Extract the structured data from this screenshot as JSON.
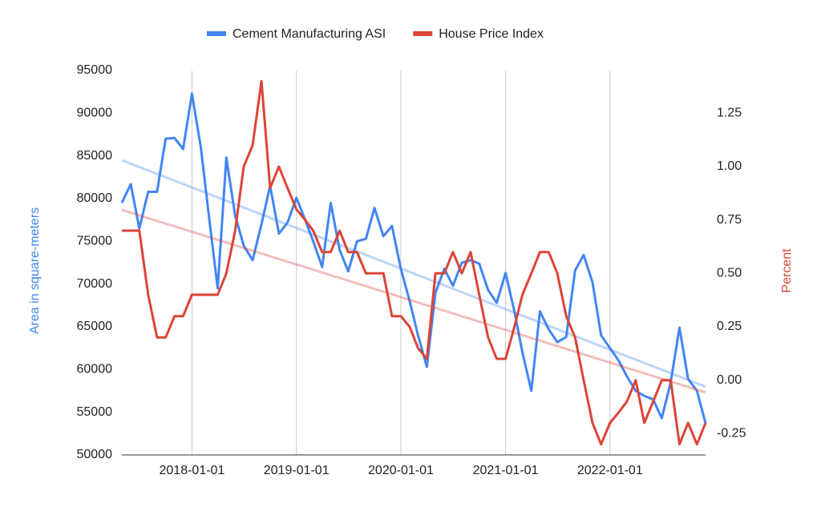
{
  "chart_data": {
    "type": "line",
    "x": [
      "2017-05-01",
      "2017-06-01",
      "2017-07-01",
      "2017-08-01",
      "2017-09-01",
      "2017-10-01",
      "2017-11-01",
      "2017-12-01",
      "2018-01-01",
      "2018-02-01",
      "2018-03-01",
      "2018-04-01",
      "2018-05-01",
      "2018-06-01",
      "2018-07-01",
      "2018-08-01",
      "2018-09-01",
      "2018-10-01",
      "2018-11-01",
      "2018-12-01",
      "2019-01-01",
      "2019-02-01",
      "2019-03-01",
      "2019-04-01",
      "2019-05-01",
      "2019-06-01",
      "2019-07-01",
      "2019-08-01",
      "2019-09-01",
      "2019-10-01",
      "2019-11-01",
      "2019-12-01",
      "2020-01-01",
      "2020-02-01",
      "2020-03-01",
      "2020-04-01",
      "2020-05-01",
      "2020-06-01",
      "2020-07-01",
      "2020-08-01",
      "2020-09-01",
      "2020-10-01",
      "2020-11-01",
      "2020-12-01",
      "2021-01-01",
      "2021-02-01",
      "2021-03-01",
      "2021-04-01",
      "2021-05-01",
      "2021-06-01",
      "2021-07-01",
      "2021-08-01",
      "2021-09-01",
      "2021-10-01",
      "2021-11-01",
      "2021-12-01",
      "2022-01-01",
      "2022-02-01",
      "2022-03-01",
      "2022-04-01",
      "2022-05-01",
      "2022-06-01",
      "2022-07-01",
      "2022-08-01",
      "2022-09-01",
      "2022-10-01",
      "2022-11-01",
      "2022-12-01"
    ],
    "series": [
      {
        "name": "Cement Manufacturing ASI",
        "color": "#4285f4",
        "axis": "y",
        "values": [
          79500,
          81700,
          76500,
          80800,
          80800,
          87000,
          87100,
          85800,
          92300,
          86000,
          78000,
          69500,
          84800,
          78000,
          74500,
          72800,
          77000,
          81500,
          75900,
          77200,
          80100,
          77500,
          75000,
          72000,
          79500,
          74000,
          71500,
          75000,
          75300,
          78900,
          75600,
          76800,
          71800,
          68000,
          64000,
          60300,
          69000,
          71800,
          69800,
          72500,
          72800,
          72400,
          69300,
          67800,
          71300,
          66800,
          62000,
          57500,
          66800,
          64700,
          63200,
          63800,
          71600,
          73400,
          70200,
          64000,
          62500,
          61000,
          59200,
          57500,
          56900,
          56500,
          54300,
          58500,
          64900,
          58900,
          57500,
          53700
        ]
      },
      {
        "name": "House Price Index",
        "color": "#db4437",
        "axis": "y2",
        "values": [
          0.7,
          0.7,
          0.7,
          0.4,
          0.2,
          0.2,
          0.3,
          0.3,
          0.4,
          0.4,
          0.4,
          0.4,
          0.5,
          0.7,
          1.0,
          1.1,
          1.4,
          0.9,
          1.0,
          0.9,
          0.8,
          0.75,
          0.7,
          0.6,
          0.6,
          0.7,
          0.6,
          0.6,
          0.5,
          0.5,
          0.5,
          0.3,
          0.3,
          0.25,
          0.15,
          0.1,
          0.5,
          0.5,
          0.6,
          0.5,
          0.6,
          0.4,
          0.2,
          0.1,
          0.1,
          0.25,
          0.4,
          0.5,
          0.6,
          0.6,
          0.5,
          0.3,
          0.2,
          0.0,
          -0.2,
          -0.3,
          -0.2,
          -0.15,
          -0.1,
          0.0,
          -0.2,
          -0.1,
          0.0,
          0.0,
          -0.3,
          -0.2,
          -0.3,
          -0.2
        ]
      }
    ],
    "y_label": "Area in square-meters",
    "y2_label": "Percent",
    "xlim": [
      "2017-05-01",
      "2022-12-01"
    ],
    "xticks": [
      "2018-01-01",
      "2019-01-01",
      "2020-01-01",
      "2021-01-01",
      "2022-01-01"
    ],
    "ylim": [
      50000,
      95000
    ],
    "yticks": [
      50000,
      55000,
      60000,
      65000,
      70000,
      75000,
      80000,
      85000,
      90000,
      95000
    ],
    "y2lim": [
      -0.35,
      1.45
    ],
    "y2ticks": [
      {
        "value": -0.25,
        "label": "-0.25"
      },
      {
        "value": 0,
        "label": "0.00"
      },
      {
        "value": 0.25,
        "label": "0.25"
      },
      {
        "value": 0.5,
        "label": "0.50"
      },
      {
        "value": 0.75,
        "label": "0.75"
      },
      {
        "value": 1,
        "label": "1.00"
      },
      {
        "value": 1.25,
        "label": "1.25"
      }
    ],
    "trendlines": true,
    "grid": "x",
    "legend": "top"
  }
}
